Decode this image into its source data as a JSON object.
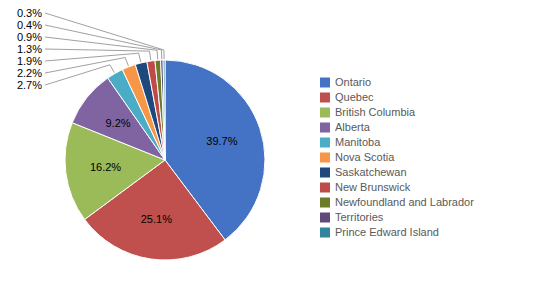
{
  "chart_data": {
    "type": "pie",
    "categories": [
      "Ontario",
      "Quebec",
      "British Columbia",
      "Alberta",
      "Manitoba",
      "Nova Scotia",
      "Saskatchewan",
      "New Brunswick",
      "Newfoundland and Labrador",
      "Territories",
      "Prince Edward Island"
    ],
    "values": [
      39.7,
      25.1,
      16.2,
      9.2,
      2.7,
      2.2,
      1.9,
      1.3,
      0.9,
      0.4,
      0.3
    ],
    "value_labels": [
      "39.7%",
      "25.1%",
      "16.2%",
      "9.2%",
      "2.7%",
      "2.2%",
      "1.9%",
      "1.3%",
      "0.9%",
      "0.4%",
      "0.3%"
    ],
    "colors": [
      "#4472C4",
      "#C0504D",
      "#9BBB59",
      "#8064A2",
      "#4BACC6",
      "#F79646",
      "#1F497D",
      "#BE4B48",
      "#6B7B2A",
      "#604A7B",
      "#31849B"
    ],
    "data_labels": true,
    "legend": "right"
  }
}
